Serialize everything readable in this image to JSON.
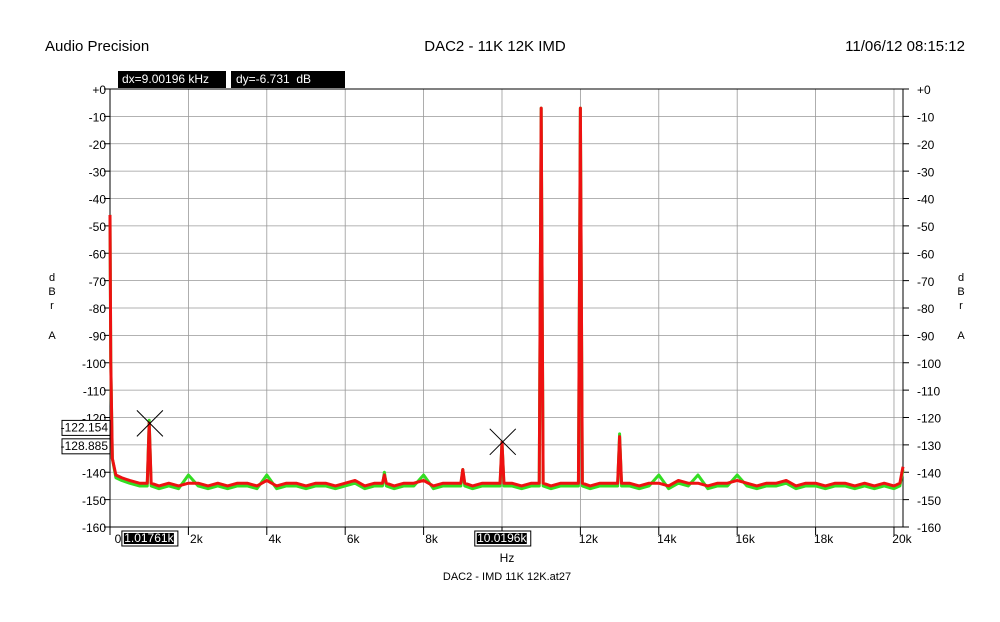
{
  "chart_data": {
    "type": "line",
    "header_left": "Audio Precision",
    "title": "DAC2 - 11K 12K IMD",
    "header_right": "11/06/12 08:15:12",
    "xlabel": "Hz",
    "footer": "DAC2 - IMD 11K 12K.at27",
    "ylabel": [
      "dBr",
      "A"
    ],
    "readouts": [
      "dx=9.00196 kHz",
      "dy=-6.731  dB"
    ],
    "xlim": [
      0,
      20230
    ],
    "ylim": [
      -160,
      0
    ],
    "xticks": [
      0,
      {
        "value": 2000,
        "label": "2k"
      },
      {
        "value": 4000,
        "label": "4k"
      },
      {
        "value": 6000,
        "label": "6k"
      },
      {
        "value": 8000,
        "label": "8k"
      },
      {
        "value": 10000,
        "label": "10k"
      },
      {
        "value": 12000,
        "label": "12k"
      },
      {
        "value": 14000,
        "label": "14k"
      },
      {
        "value": 16000,
        "label": "16k"
      },
      {
        "value": 18000,
        "label": "18k"
      },
      {
        "value": 20000,
        "label": "20k"
      }
    ],
    "yticks": [
      {
        "value": 0,
        "label": "+0"
      },
      -10,
      -20,
      -30,
      -40,
      -50,
      -60,
      -70,
      -80,
      -90,
      -100,
      -110,
      -120,
      -130,
      -140,
      -150,
      -160
    ],
    "grid": true,
    "cursors": [
      {
        "x": {
          "value": 1017.61,
          "label": "1.01761k"
        },
        "y": -122.154
      },
      {
        "x": {
          "value": 10019.6,
          "label": "10.0196k"
        },
        "y": -128.885
      }
    ],
    "x": [
      0,
      20,
      60,
      150,
      300,
      500,
      750,
      950,
      1000,
      1050,
      1250,
      1500,
      1750,
      2000,
      2250,
      2500,
      2750,
      3000,
      3250,
      3500,
      3750,
      4000,
      4250,
      4500,
      4750,
      5000,
      5250,
      5500,
      5750,
      6000,
      6250,
      6500,
      6750,
      6950,
      7000,
      7050,
      7250,
      7500,
      7750,
      8000,
      8250,
      8500,
      8750,
      8950,
      9000,
      9050,
      9250,
      9500,
      9750,
      9950,
      10000,
      10050,
      10250,
      10500,
      10750,
      10950,
      11000,
      11050,
      11250,
      11500,
      11750,
      11950,
      12000,
      12050,
      12250,
      12500,
      12750,
      12950,
      13000,
      13050,
      13250,
      13500,
      13750,
      14000,
      14250,
      14500,
      14750,
      15000,
      15250,
      15500,
      15750,
      16000,
      16250,
      16500,
      16750,
      17000,
      17250,
      17500,
      17750,
      18000,
      18250,
      18500,
      18750,
      19000,
      19250,
      19500,
      19750,
      20000,
      20150,
      20230
    ],
    "series": [
      {
        "color": "#33dd22",
        "values": [
          -46,
          -100,
          -135,
          -142,
          -143,
          -144,
          -145,
          -145,
          -121,
          -145,
          -146,
          -145,
          -146,
          -141,
          -145,
          -146,
          -145,
          -146,
          -145,
          -145,
          -146,
          -141,
          -146,
          -145,
          -145,
          -146,
          -145,
          -145,
          -146,
          -145,
          -144,
          -146,
          -145,
          -145,
          -140,
          -145,
          -146,
          -145,
          -145,
          -141,
          -146,
          -145,
          -145,
          -145,
          -139,
          -145,
          -146,
          -145,
          -145,
          -145,
          -129,
          -145,
          -145,
          -146,
          -145,
          -145,
          -7,
          -145,
          -146,
          -145,
          -145,
          -145,
          -7,
          -145,
          -146,
          -145,
          -145,
          -145,
          -126,
          -145,
          -145,
          -146,
          -145,
          -141,
          -146,
          -144,
          -145,
          -141,
          -146,
          -145,
          -145,
          -141,
          -145,
          -146,
          -145,
          -145,
          -144,
          -146,
          -145,
          -145,
          -146,
          -145,
          -145,
          -146,
          -145,
          -146,
          -145,
          -146,
          -145,
          -139
        ]
      },
      {
        "color": "#ee1111",
        "values": [
          -46,
          -100,
          -135,
          -141,
          -142,
          -143,
          -144,
          -144,
          -122,
          -144,
          -145,
          -144,
          -145,
          -144,
          -144,
          -145,
          -144,
          -145,
          -144,
          -144,
          -145,
          -143,
          -145,
          -144,
          -144,
          -145,
          -144,
          -144,
          -145,
          -144,
          -143,
          -145,
          -144,
          -144,
          -141,
          -144,
          -145,
          -144,
          -144,
          -143,
          -145,
          -144,
          -144,
          -144,
          -139,
          -144,
          -145,
          -144,
          -144,
          -144,
          -129,
          -144,
          -144,
          -145,
          -144,
          -144,
          -7,
          -144,
          -145,
          -144,
          -144,
          -144,
          -7,
          -144,
          -145,
          -144,
          -144,
          -144,
          -127,
          -144,
          -144,
          -145,
          -144,
          -144,
          -145,
          -143,
          -144,
          -144,
          -145,
          -144,
          -144,
          -143,
          -144,
          -145,
          -144,
          -144,
          -143,
          -145,
          -144,
          -144,
          -145,
          -144,
          -144,
          -145,
          -144,
          -145,
          -144,
          -145,
          -144,
          -138
        ]
      }
    ]
  }
}
